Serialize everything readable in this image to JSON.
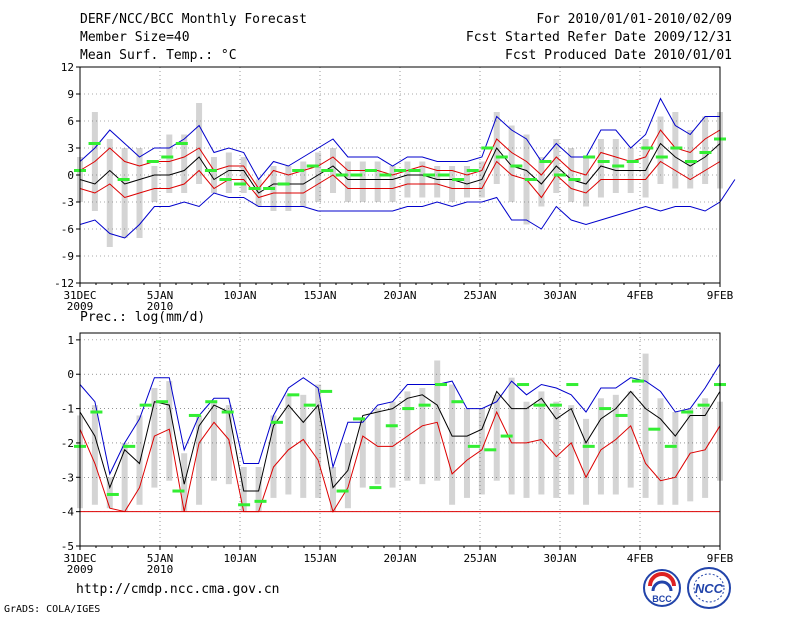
{
  "header": {
    "title": "DERF/NCC/BCC Monthly Forecast",
    "member": "Member Size=40",
    "variable": "Mean Surf. Temp.: °C",
    "period": "For 2010/01/01-2010/02/09",
    "start": "Fcst Started Refer Date 2009/12/31",
    "produced": "Fcst Produced Date 2010/01/01"
  },
  "footer": {
    "url": "http://cmdp.ncc.cma.gov.cn",
    "grads": "GrADS: COLA/IGES",
    "logo_bcc": "BCC",
    "logo_ncc": "NCC"
  },
  "colors": {
    "box": "#d4d4d4",
    "mean": "#000000",
    "max": "#0000cc",
    "min": "#dd0000",
    "obs": "#33ee33",
    "grid": "#555555"
  },
  "chart_data": [
    {
      "type": "line",
      "title": "Mean Surf. Temp.: °C",
      "x_tick_labels": [
        "31DEC",
        "5JAN",
        "10JAN",
        "15JAN",
        "20JAN",
        "25JAN",
        "30JAN",
        "4FEB",
        "9FEB"
      ],
      "x_tick_sublabels": [
        "2009",
        "2010",
        "",
        "",
        "",
        "",
        "",
        "",
        ""
      ],
      "y_ticks": [
        "-12",
        "-9",
        "-6",
        "-3",
        "0",
        "3",
        "6",
        "9",
        "12"
      ],
      "ylim": [
        -12,
        12
      ],
      "days": 40,
      "series": [
        {
          "name": "max",
          "values": [
            1.5,
            3,
            5,
            3.5,
            2,
            3,
            3,
            4,
            5.5,
            2.5,
            3,
            2.5,
            -0.5,
            1.5,
            1,
            2,
            3,
            4,
            2,
            2,
            2,
            1,
            2,
            2,
            1.5,
            1.5,
            1.5,
            2,
            6.5,
            5,
            4,
            1.5,
            3.5,
            2,
            2,
            5,
            5,
            3,
            4.5,
            8.5,
            5.5,
            4.5,
            6.5,
            6.5
          ]
        },
        {
          "name": "upper",
          "values": [
            0.5,
            1.5,
            3,
            1.5,
            1,
            1.5,
            1.5,
            2,
            3,
            0.5,
            1,
            1,
            -1.5,
            0.5,
            0,
            0.5,
            1,
            2,
            0.5,
            0.5,
            0.5,
            0,
            0.5,
            1,
            0.5,
            0.5,
            0,
            0.5,
            4,
            2.5,
            1.5,
            0,
            2,
            0.5,
            0,
            2.5,
            2,
            1.5,
            2,
            5,
            3,
            2.5,
            4,
            5
          ]
        },
        {
          "name": "mean",
          "values": [
            -0.5,
            -1,
            0.5,
            -1,
            -0.5,
            0,
            0,
            0.5,
            2,
            -0.5,
            0.5,
            0.5,
            -2,
            -1,
            -1,
            -1,
            0,
            1,
            -0.5,
            -0.5,
            -0.5,
            -0.5,
            0,
            0,
            -0.5,
            -0.5,
            -1,
            -0.5,
            3,
            1,
            0.5,
            -1,
            1,
            -0.5,
            -1,
            1,
            0.5,
            0.5,
            0.5,
            3.5,
            2,
            1,
            2,
            3.5
          ]
        },
        {
          "name": "lower",
          "values": [
            -1.5,
            -2,
            -1,
            -2.5,
            -2,
            -1.5,
            -1.5,
            -1,
            0.5,
            -1.5,
            -0.5,
            -0.5,
            -2.5,
            -2,
            -2,
            -2,
            -1,
            0,
            -1.5,
            -1.5,
            -1.5,
            -1.5,
            -1,
            -1,
            -1,
            -1.5,
            -1.5,
            -1.5,
            1.5,
            0,
            -0.5,
            -2.5,
            0,
            -1.5,
            -2,
            -0.5,
            -0.5,
            -0.5,
            -0.5,
            1.5,
            0.5,
            -0.5,
            0.5,
            1.5
          ]
        },
        {
          "name": "min",
          "values": [
            -5.5,
            -5,
            -6.5,
            -7,
            -5.5,
            -3.5,
            -3.5,
            -3,
            -3.5,
            -2,
            -2.5,
            -2.5,
            -3.5,
            -3.5,
            -3.5,
            -3.5,
            -4,
            -4,
            -4,
            -4,
            -4,
            -4,
            -3.5,
            -3.5,
            -3,
            -3.5,
            -3,
            -3,
            -2.5,
            -5,
            -5,
            -6,
            -3.5,
            -5,
            -5.5,
            -5,
            -4.5,
            -4,
            -3.5,
            -4,
            -3.5,
            -3.5,
            -4,
            -3,
            -0.5
          ]
        },
        {
          "name": "obs",
          "values": [
            0.5,
            3.5,
            null,
            -0.5,
            null,
            1.5,
            2,
            3.5,
            null,
            0.5,
            -0.5,
            -1,
            -1.5,
            -1.5,
            -1,
            0.5,
            1,
            0.5,
            0,
            0,
            0.5,
            0,
            0.5,
            0.5,
            0,
            0,
            -0.5,
            0.5,
            3,
            2,
            1,
            -0.5,
            1.5,
            0,
            -0.5,
            2,
            1.5,
            1,
            1.5,
            3,
            2,
            3,
            1.5,
            2.5,
            4
          ]
        },
        {
          "name": "box_top",
          "values": [
            2,
            7,
            4,
            3,
            3,
            1,
            4.5,
            4.5,
            8,
            2,
            2.5,
            2,
            -0.5,
            1,
            1,
            1.5,
            2.5,
            3,
            1.5,
            1.5,
            1.5,
            1,
            1.5,
            1.5,
            1,
            1,
            1,
            1.5,
            7,
            5.5,
            4.5,
            2,
            4,
            3,
            2,
            4,
            4,
            3,
            4,
            6.5,
            7,
            5,
            6.5,
            7
          ]
        },
        {
          "name": "box_bottom",
          "values": [
            -3,
            -4,
            -8,
            -7,
            -7,
            -3,
            -2,
            -2,
            -1,
            -2,
            -2,
            -2,
            -3.5,
            -4,
            -4,
            -3.5,
            -3,
            -2,
            -3,
            -3,
            -3,
            -3,
            -2.5,
            -2.5,
            -2.5,
            -3,
            -2.5,
            -2.5,
            -1,
            -3,
            -5.5,
            -3.5,
            -2,
            -3,
            -3.5,
            -2.5,
            -2,
            -2,
            -2.5,
            -1,
            -1.5,
            -1.5,
            -1,
            -1.5,
            0
          ]
        }
      ]
    },
    {
      "type": "line",
      "title": "Prec.: log(mm/d)",
      "x_tick_labels": [
        "31DEC",
        "5JAN",
        "10JAN",
        "15JAN",
        "20JAN",
        "25JAN",
        "30JAN",
        "4FEB",
        "9FEB"
      ],
      "x_tick_sublabels": [
        "2009",
        "2010",
        "",
        "",
        "",
        "",
        "",
        "",
        ""
      ],
      "y_ticks": [
        "-5",
        "-4",
        "-3",
        "-2",
        "-1",
        "0",
        "1"
      ],
      "ylim": [
        -5,
        1.2
      ],
      "days": 40,
      "series": [
        {
          "name": "max",
          "values": [
            -0.3,
            -0.8,
            -2.9,
            -2,
            -1.3,
            -0.1,
            -0.1,
            -2.2,
            -1.2,
            -0.7,
            -0.7,
            -2.6,
            -2.6,
            -1.2,
            -0.4,
            -0.1,
            -0.4,
            -2.7,
            -1.4,
            -1.4,
            -0.9,
            -0.8,
            -0.3,
            -0.3,
            -0.3,
            -0.2,
            -1,
            -1,
            -0.8,
            -0.2,
            -0.6,
            -0.3,
            -0.4,
            -0.6,
            -1.1,
            -0.4,
            -0.4,
            -0.1,
            -0.2,
            -0.5,
            -1.1,
            -1,
            -0.4,
            0.3
          ]
        },
        {
          "name": "mean",
          "values": [
            -1.1,
            -1.8,
            -3.3,
            -2.2,
            -2.6,
            -0.8,
            -0.9,
            -3.2,
            -1.5,
            -0.9,
            -1.1,
            -3.4,
            -3.4,
            -1.5,
            -0.9,
            -1.4,
            -0.9,
            -3.3,
            -2.8,
            -1.2,
            -1.1,
            -1,
            -0.7,
            -0.6,
            -0.9,
            -1.8,
            -1.8,
            -1.6,
            -0.5,
            -1,
            -1,
            -0.7,
            -1.3,
            -1,
            -2,
            -1.3,
            -1,
            -0.5,
            -1,
            -1.3,
            -1.8,
            -1.2,
            -1.2,
            -0.5
          ]
        },
        {
          "name": "min",
          "values": [
            -1.6,
            -2.6,
            -3.9,
            -4,
            -3.3,
            -1.8,
            -1.6,
            -4,
            -2,
            -1.4,
            -1.9,
            -4,
            -4,
            -2.7,
            -2.2,
            -1.9,
            -2.5,
            -4,
            -3.3,
            -1.8,
            -2.1,
            -2.1,
            -1.8,
            -1.5,
            -1.4,
            -2.9,
            -2.5,
            -2.2,
            -1.1,
            -2,
            -2,
            -1.9,
            -2.4,
            -2,
            -3,
            -2.2,
            -1.9,
            -1.5,
            -2.6,
            -3.1,
            -3,
            -2.3,
            -2.2,
            -1.5
          ]
        },
        {
          "name": "obs",
          "values": [
            -2.1,
            -1.1,
            -3.5,
            -2.1,
            -0.9,
            -0.8,
            -3.4,
            -1.2,
            -0.8,
            -1.1,
            -3.8,
            -3.7,
            -1.4,
            -0.6,
            -0.9,
            -0.5,
            -3.4,
            -1.3,
            -3.3,
            -1.5,
            -1,
            -0.9,
            -0.3,
            -0.8,
            -2.1,
            -2.2,
            -1.8,
            -0.3,
            -0.9,
            -0.9,
            -0.3,
            -2.1,
            -1,
            -1.2,
            -0.2,
            -1.6,
            -2.1,
            -1.1,
            -0.9,
            -0.3
          ]
        },
        {
          "name": "box_top",
          "values": [
            -1.2,
            -0.9,
            -3,
            -2,
            -1.2,
            -0.4,
            -0.2,
            -2.3,
            -1.2,
            -0.8,
            -0.9,
            -2.7,
            -2.7,
            -1.2,
            -0.6,
            -0.6,
            -0.3,
            -2.7,
            -2,
            -1.3,
            -1,
            -0.8,
            -0.5,
            -0.4,
            0.4,
            -0.3,
            -1,
            -1,
            -0.6,
            -0.1,
            -0.8,
            -0.5,
            -0.8,
            -0.9,
            -1.3,
            -0.7,
            -0.6,
            -0.5,
            0.6,
            -0.7,
            -1.1,
            -1,
            -0.7,
            -0.8,
            0.2
          ]
        },
        {
          "name": "box_bottom",
          "values": [
            -3.9,
            -3.8,
            -3.9,
            -4,
            -3.8,
            -3.3,
            -3.1,
            -4,
            -3.8,
            -3.1,
            -3.2,
            -4,
            -4,
            -3.6,
            -3.5,
            -3.6,
            -3.6,
            -4,
            -3.9,
            -3.3,
            -3.2,
            -3.3,
            -3.1,
            -3.2,
            -3.1,
            -3.8,
            -3.6,
            -3.5,
            -3.1,
            -3.5,
            -3.6,
            -3.5,
            -3.6,
            -3.5,
            -3.8,
            -3.5,
            -3.5,
            -3.3,
            -3.6,
            -3.8,
            -3.8,
            -3.7,
            -3.6,
            -3.1
          ]
        },
        {
          "name": "floor",
          "values": [
            -4,
            -4,
            -4,
            -4,
            -4,
            -4,
            -4,
            -4,
            -4,
            -4,
            -4,
            -4,
            -4,
            -4,
            -4,
            -4,
            -4,
            -4,
            -4,
            -4,
            -4,
            -4,
            -4,
            -4,
            -4,
            -4,
            -4,
            -4,
            -4,
            -4,
            -4,
            -4,
            -4,
            -4,
            -4,
            -4,
            -4,
            -4,
            -4,
            -4,
            -4,
            -4,
            -4,
            -4
          ]
        }
      ]
    }
  ]
}
